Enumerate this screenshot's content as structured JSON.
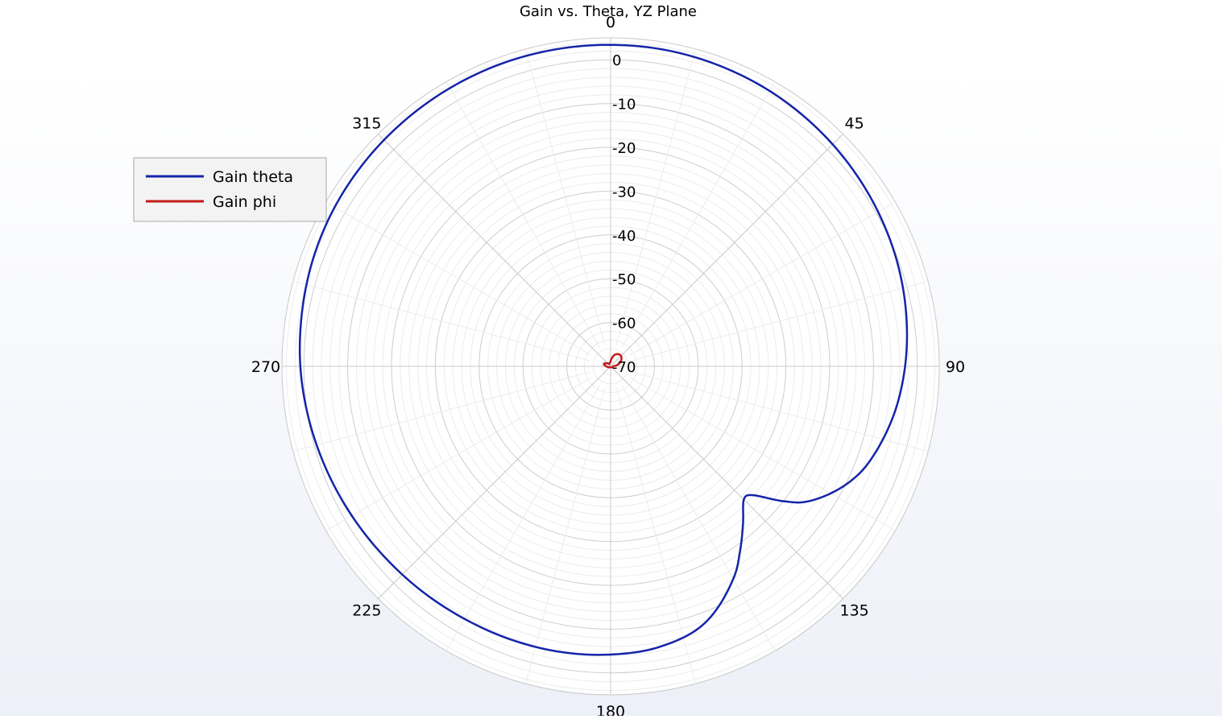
{
  "chart_data": {
    "type": "polar-line",
    "title": "Gain vs. Theta, YZ Plane",
    "angle_ticks": [
      "0",
      "45",
      "90",
      "135",
      "180",
      "225",
      "270",
      "315"
    ],
    "radial_ticks": [
      "0",
      "-10",
      "-20",
      "-30",
      "-40",
      "-50",
      "-60",
      "-70"
    ],
    "radial_range": [
      -70,
      5
    ],
    "grid": true,
    "legend_position": "top-left",
    "series": [
      {
        "name": "Gain theta",
        "color": "#1424a8",
        "points": [
          [
            0,
            3.4
          ],
          [
            10,
            3.3
          ],
          [
            20,
            3.0
          ],
          [
            30,
            2.6
          ],
          [
            40,
            2.0
          ],
          [
            50,
            1.3
          ],
          [
            60,
            0.5
          ],
          [
            70,
            -0.4
          ],
          [
            80,
            -1.5
          ],
          [
            90,
            -2.8
          ],
          [
            100,
            -4.5
          ],
          [
            110,
            -7.0
          ],
          [
            115,
            -9.0
          ],
          [
            120,
            -12.0
          ],
          [
            125,
            -16.0
          ],
          [
            128,
            -20.0
          ],
          [
            132,
            -26.0
          ],
          [
            135,
            -27.0
          ],
          [
            140,
            -23.0
          ],
          [
            145,
            -18.5
          ],
          [
            150,
            -14.0
          ],
          [
            160,
            -7.5
          ],
          [
            170,
            -5.0
          ],
          [
            180,
            -4.2
          ],
          [
            190,
            -3.8
          ],
          [
            200,
            -3.6
          ],
          [
            210,
            -3.4
          ],
          [
            220,
            -3.0
          ],
          [
            230,
            -2.5
          ],
          [
            240,
            -1.8
          ],
          [
            250,
            -1.0
          ],
          [
            260,
            -0.1
          ],
          [
            270,
            0.8
          ],
          [
            280,
            1.5
          ],
          [
            290,
            2.2
          ],
          [
            300,
            2.7
          ],
          [
            310,
            3.0
          ],
          [
            320,
            3.2
          ],
          [
            330,
            3.35
          ],
          [
            340,
            3.45
          ],
          [
            350,
            3.45
          ]
        ]
      },
      {
        "name": "Gain phi",
        "color": "#c41a1a",
        "points": [
          [
            0,
            -68.8
          ],
          [
            20,
            -67.2
          ],
          [
            40,
            -66.6
          ],
          [
            60,
            -67.2
          ],
          [
            80,
            -68.6
          ],
          [
            90,
            -69.4
          ],
          [
            120,
            -69.6
          ],
          [
            180,
            -69.8
          ],
          [
            240,
            -69.6
          ],
          [
            270,
            -69.0
          ],
          [
            290,
            -68.4
          ],
          [
            310,
            -68.9
          ],
          [
            330,
            -69.4
          ],
          [
            350,
            -69.1
          ]
        ]
      }
    ]
  }
}
